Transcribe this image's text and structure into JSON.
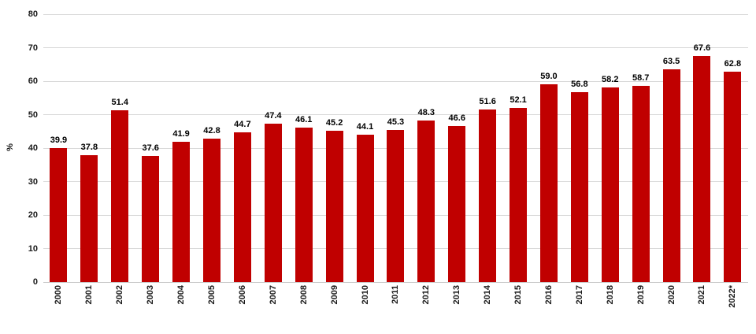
{
  "chart_data": {
    "type": "bar",
    "title": "",
    "xlabel": "",
    "ylabel": "%",
    "ylim": [
      0,
      80
    ],
    "yticks": [
      0,
      10,
      20,
      30,
      40,
      50,
      60,
      70,
      80
    ],
    "grid": true,
    "legend": false,
    "bar_color": "#c00000",
    "gridline_color": "#d9d9d9",
    "categories": [
      "2000",
      "2001",
      "2002",
      "2003",
      "2004",
      "2005",
      "2006",
      "2007",
      "2008",
      "2009",
      "2010",
      "2011",
      "2012",
      "2013",
      "2014",
      "2015",
      "2016",
      "2017",
      "2018",
      "2019",
      "2020",
      "2021",
      "2022*"
    ],
    "values": [
      39.9,
      37.8,
      51.4,
      37.6,
      41.9,
      42.8,
      44.7,
      47.4,
      46.1,
      45.2,
      44.1,
      45.3,
      48.3,
      46.6,
      51.6,
      52.1,
      59.0,
      56.8,
      58.2,
      58.7,
      63.5,
      67.6,
      62.8
    ],
    "value_labels": [
      "39.9",
      "37.8",
      "51.4",
      "37.6",
      "41.9",
      "42.8",
      "44.7",
      "47.4",
      "46.1",
      "45.2",
      "44.1",
      "45.3",
      "48.3",
      "46.6",
      "51.6",
      "52.1",
      "59.0",
      "56.8",
      "58.2",
      "58.7",
      "63.5",
      "67.6",
      "62.8"
    ]
  }
}
